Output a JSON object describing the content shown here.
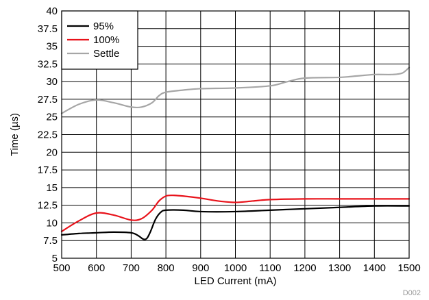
{
  "chart_data": {
    "type": "line",
    "title": "",
    "xlabel": "LED Current (mA)",
    "ylabel": "Time (µs)",
    "xlim": [
      500,
      1500
    ],
    "ylim": [
      5,
      40
    ],
    "x_ticks": [
      500,
      600,
      700,
      800,
      900,
      1000,
      1100,
      1200,
      1300,
      1400,
      1500
    ],
    "y_ticks": [
      "5",
      "7.5",
      "10",
      "12.5",
      "15",
      "17.5",
      "20",
      "22.5",
      "25",
      "27.5",
      "30",
      "32.5",
      "35",
      "37.5",
      "40"
    ],
    "grid": true,
    "legend_position": "top-left",
    "series": [
      {
        "name": "95%",
        "color": "#000000",
        "x": [
          500,
          550,
          600,
          650,
          700,
          720,
          735,
          745,
          755,
          770,
          785,
          800,
          850,
          900,
          1000,
          1100,
          1200,
          1300,
          1400,
          1500
        ],
        "y": [
          8.3,
          8.5,
          8.6,
          8.7,
          8.6,
          8.2,
          7.7,
          7.8,
          8.7,
          10.5,
          11.5,
          11.8,
          11.8,
          11.6,
          11.6,
          11.8,
          12.0,
          12.2,
          12.4,
          12.4
        ]
      },
      {
        "name": "100%",
        "color": "#e8121a",
        "x": [
          500,
          550,
          600,
          650,
          700,
          730,
          760,
          780,
          800,
          820,
          850,
          900,
          950,
          1000,
          1050,
          1100,
          1200,
          1300,
          1400,
          1500
        ],
        "y": [
          8.8,
          10.3,
          11.4,
          11.1,
          10.4,
          10.6,
          11.8,
          13.1,
          13.8,
          13.9,
          13.8,
          13.5,
          13.1,
          12.9,
          13.1,
          13.3,
          13.4,
          13.4,
          13.4,
          13.4
        ]
      },
      {
        "name": "Settle",
        "color": "#a6a6a6",
        "x": [
          500,
          550,
          600,
          650,
          700,
          730,
          760,
          780,
          800,
          850,
          900,
          1000,
          1100,
          1150,
          1200,
          1300,
          1350,
          1400,
          1450,
          1480,
          1500
        ],
        "y": [
          25.5,
          26.8,
          27.4,
          27.0,
          26.4,
          26.4,
          27.0,
          28.0,
          28.5,
          28.8,
          29.0,
          29.1,
          29.4,
          30.0,
          30.5,
          30.6,
          30.8,
          31.0,
          31.0,
          31.2,
          32.0
        ]
      }
    ],
    "annotation": "D002"
  }
}
